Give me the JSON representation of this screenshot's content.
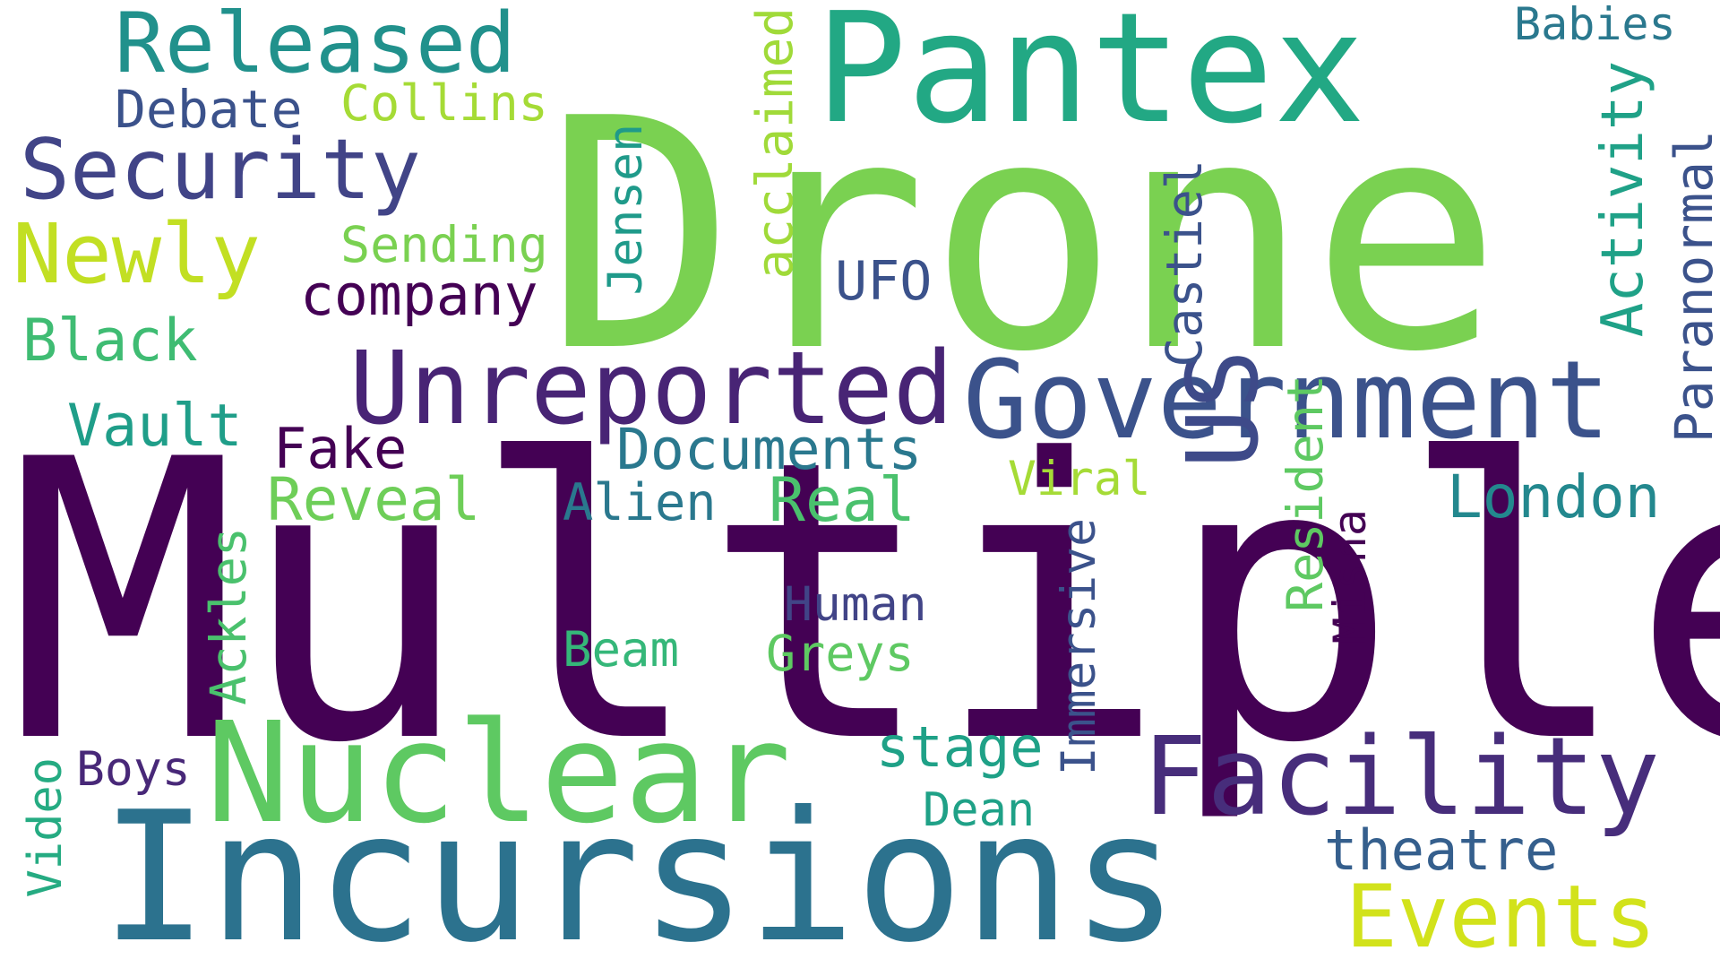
{
  "words": [
    {
      "text": "Multiple",
      "color": "#440154"
    },
    {
      "text": "Drone",
      "color": "#7ad151"
    },
    {
      "text": "Pantex",
      "color": "#22a884"
    },
    {
      "text": "Incursions",
      "color": "#2c728e"
    },
    {
      "text": "Nuclear",
      "color": "#5ec962"
    },
    {
      "text": "Government",
      "color": "#3b528b"
    },
    {
      "text": "Unreported",
      "color": "#482475"
    },
    {
      "text": "Facility",
      "color": "#472d7b"
    },
    {
      "text": "Security",
      "color": "#414487"
    },
    {
      "text": "Released",
      "color": "#21918c"
    },
    {
      "text": "Newly",
      "color": "#c2df23"
    },
    {
      "text": "Events",
      "color": "#d2e21b"
    },
    {
      "text": "US",
      "color": "#3e4a89"
    },
    {
      "text": "acclaimed",
      "color": "#a0da39"
    },
    {
      "text": "Activity",
      "color": "#1fa187"
    },
    {
      "text": "Paranormal",
      "color": "#3b528b"
    },
    {
      "text": "company",
      "color": "#440154"
    },
    {
      "text": "Documents",
      "color": "#2a788e"
    },
    {
      "text": "Reveal",
      "color": "#6ece58"
    },
    {
      "text": "Real",
      "color": "#4ac16d"
    },
    {
      "text": "London",
      "color": "#23888e"
    },
    {
      "text": "Debate",
      "color": "#3b528b"
    },
    {
      "text": "Collins",
      "color": "#a5db36"
    },
    {
      "text": "Sending",
      "color": "#7ad151"
    },
    {
      "text": "Black",
      "color": "#3fbc73"
    },
    {
      "text": "Vault",
      "color": "#1f9e89"
    },
    {
      "text": "Fake",
      "color": "#440154"
    },
    {
      "text": "Alien",
      "color": "#2a788e"
    },
    {
      "text": "UFO",
      "color": "#3b528b"
    },
    {
      "text": "Jensen",
      "color": "#1f9a8a"
    },
    {
      "text": "Castiel",
      "color": "#3b528b"
    },
    {
      "text": "Babies",
      "color": "#2a788e"
    },
    {
      "text": "Viral",
      "color": "#a5db36"
    },
    {
      "text": "Resident",
      "color": "#5ec962"
    },
    {
      "text": "Misha",
      "color": "#440154"
    },
    {
      "text": "Immersive",
      "color": "#3b528b"
    },
    {
      "text": "Human",
      "color": "#414487"
    },
    {
      "text": "Greys",
      "color": "#5ec962"
    },
    {
      "text": "Beam",
      "color": "#35b779"
    },
    {
      "text": "Ackles",
      "color": "#4ac16d"
    },
    {
      "text": "stage",
      "color": "#1fa187"
    },
    {
      "text": "Dean",
      "color": "#1fa187"
    },
    {
      "text": "theatre",
      "color": "#355f8d"
    },
    {
      "text": "Boys",
      "color": "#482878"
    },
    {
      "text": "Video",
      "color": "#25ab82"
    }
  ]
}
